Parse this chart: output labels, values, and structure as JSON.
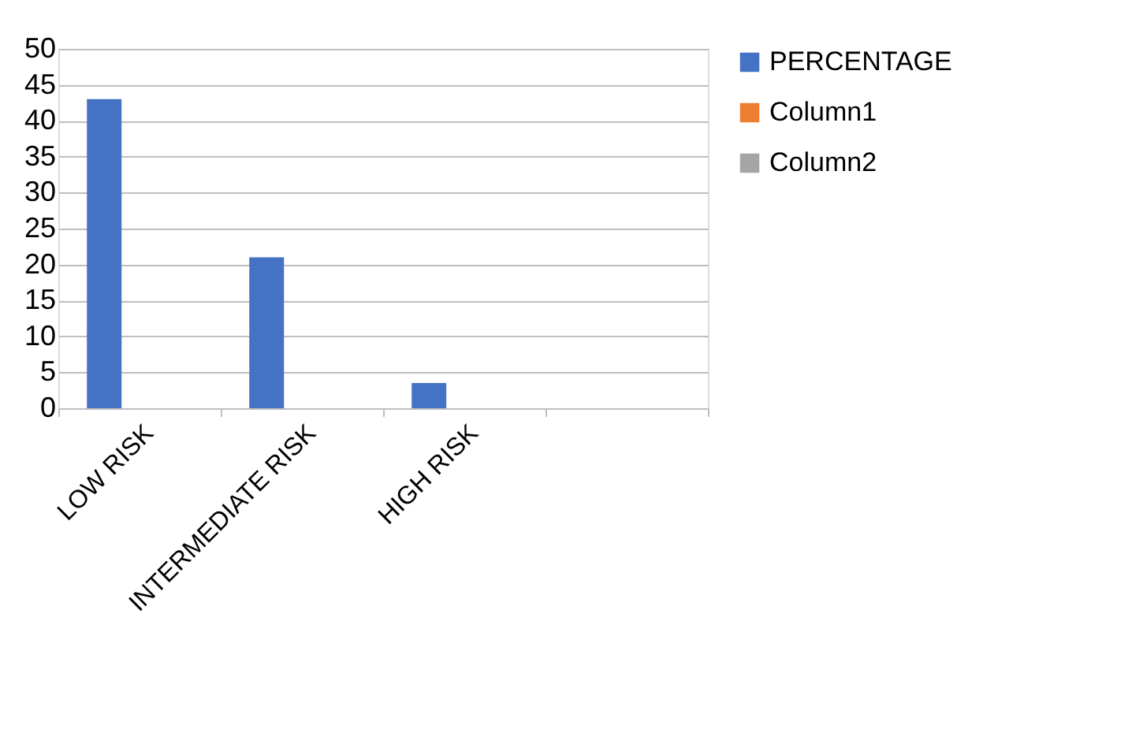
{
  "chart_data": {
    "type": "bar",
    "categories": [
      "LOW RISK",
      "INTERMEDIATE RISK",
      "HIGH RISK",
      null
    ],
    "series": [
      {
        "name": "PERCENTAGE",
        "color": "#4472c4",
        "values": [
          43,
          21,
          3.5,
          null
        ]
      },
      {
        "name": "Column1",
        "color": "#ed7d31",
        "values": [
          null,
          null,
          null,
          null
        ]
      },
      {
        "name": "Column2",
        "color": "#a5a5a5",
        "values": [
          null,
          null,
          null,
          null
        ]
      }
    ],
    "ylim": [
      0,
      50
    ],
    "yticks": [
      0,
      5,
      10,
      15,
      20,
      25,
      30,
      35,
      40,
      45,
      50
    ],
    "grid": "y",
    "legend": "right"
  }
}
